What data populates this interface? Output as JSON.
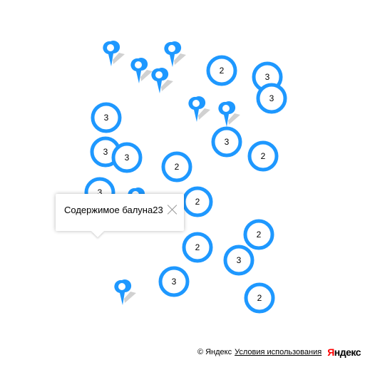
{
  "map": {
    "accent_color": "#1e98ff",
    "clusters": [
      {
        "count": "2"
      },
      {
        "count": "3"
      },
      {
        "count": "3"
      },
      {
        "count": "3"
      },
      {
        "count": "3"
      },
      {
        "count": "2"
      },
      {
        "count": "3"
      },
      {
        "count": "3"
      },
      {
        "count": "2"
      },
      {
        "count": "3"
      },
      {
        "count": "2"
      },
      {
        "count": "2"
      },
      {
        "count": "2"
      },
      {
        "count": "3"
      },
      {
        "count": "3"
      },
      {
        "count": "2"
      }
    ],
    "placemarks": [
      {
        "icon": "placemark-icon"
      },
      {
        "icon": "placemark-icon"
      },
      {
        "icon": "placemark-icon"
      },
      {
        "icon": "placemark-icon"
      },
      {
        "icon": "placemark-icon"
      },
      {
        "icon": "placemark-icon"
      },
      {
        "icon": "placemark-icon"
      },
      {
        "icon": "placemark-icon"
      }
    ]
  },
  "balloon": {
    "content": "Содержимое балуна23",
    "close_icon": "close-icon"
  },
  "copyright": {
    "text": "© Яндекс",
    "terms_link": "Условия использования",
    "logo_first": "Я",
    "logo_rest": "ндекс"
  }
}
